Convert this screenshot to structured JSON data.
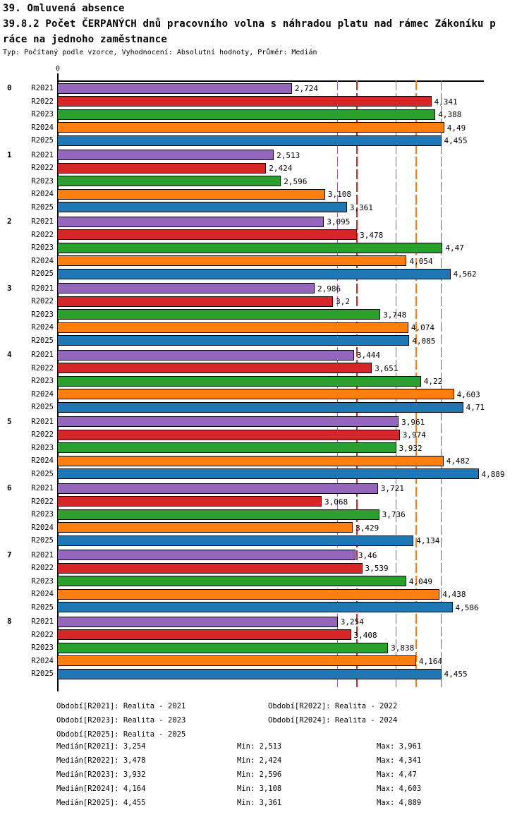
{
  "header": {
    "title_line1": "39. Omluvená absence",
    "title_line2": "39.8.2 Počet ČERPANÝCH dnů pracovního volna s náhradou platu nad rámec Zákoníku p",
    "title_line3": "ráce na jednoho zaměstnance",
    "subtitle": "Typ: Počítaný podle vzorce, Vyhodnocení: Absolutní hodnoty, Průměr: Medián"
  },
  "chart_data": {
    "type": "bar",
    "orientation": "horizontal",
    "title": "39.8.2 Počet ČERPANÝCH dnů pracovního volna s náhradou platu nad rámec Zákoníku práce na jednoho zaměstnance",
    "xlabel": "",
    "ylabel": "",
    "xlim": [
      0,
      4.95
    ],
    "grid": false,
    "axis_origin_tick_label": "0",
    "series": [
      "R2021",
      "R2022",
      "R2023",
      "R2024",
      "R2025"
    ],
    "colors": [
      "#9467bd",
      "#d62728",
      "#2ca02c",
      "#ff7f0e",
      "#1f77b4"
    ],
    "categories": [
      "0",
      "1",
      "2",
      "3",
      "4",
      "5",
      "6",
      "7",
      "8"
    ],
    "groups": [
      {
        "category": "0",
        "values": [
          2.724,
          4.341,
          4.388,
          4.49,
          4.455
        ],
        "value_labels": [
          "2,724",
          "4,341",
          "4,388",
          "4,49",
          "4,455"
        ]
      },
      {
        "category": "1",
        "values": [
          2.513,
          2.424,
          2.596,
          3.108,
          3.361
        ],
        "value_labels": [
          "2,513",
          "2,424",
          "2,596",
          "3,108",
          "3,361"
        ]
      },
      {
        "category": "2",
        "values": [
          3.095,
          3.478,
          4.47,
          4.054,
          4.562
        ],
        "value_labels": [
          "3,095",
          "3,478",
          "4,47",
          "4,054",
          "4,562"
        ]
      },
      {
        "category": "3",
        "values": [
          2.986,
          3.2,
          3.748,
          4.074,
          4.085
        ],
        "value_labels": [
          "2,986",
          "3,2",
          "3,748",
          "4,074",
          "4,085"
        ]
      },
      {
        "category": "4",
        "values": [
          3.444,
          3.651,
          4.22,
          4.603,
          4.71
        ],
        "value_labels": [
          "3,444",
          "3,651",
          "4,22",
          "4,603",
          "4,71"
        ]
      },
      {
        "category": "5",
        "values": [
          3.961,
          3.974,
          3.932,
          4.482,
          4.889
        ],
        "value_labels": [
          "3,961",
          "3,974",
          "3,932",
          "4,482",
          "4,889"
        ]
      },
      {
        "category": "6",
        "values": [
          3.721,
          3.068,
          3.736,
          3.429,
          4.134
        ],
        "value_labels": [
          "3,721",
          "3,068",
          "3,736",
          "3,429",
          "4,134"
        ]
      },
      {
        "category": "7",
        "values": [
          3.46,
          3.539,
          4.049,
          4.438,
          4.586
        ],
        "value_labels": [
          "3,46",
          "3,539",
          "4,049",
          "4,438",
          "4,586"
        ]
      },
      {
        "category": "8",
        "values": [
          3.254,
          3.408,
          3.838,
          4.164,
          4.455
        ],
        "value_labels": [
          "3,254",
          "3,408",
          "3,838",
          "4,164",
          "4,455"
        ]
      }
    ],
    "median_lines": [
      {
        "series": "R2021",
        "value": 3.254,
        "color": "#9467bd"
      },
      {
        "series": "R2022",
        "value": 3.478,
        "color": "#d62728"
      },
      {
        "series": "R2023",
        "value": 3.932,
        "color": "#2ca02c"
      },
      {
        "series": "R2024",
        "value": 4.164,
        "color": "#ff7f0e"
      },
      {
        "series": "R2025",
        "value": 4.455,
        "color": "#1f77b4"
      }
    ]
  },
  "legend": {
    "period_labels": [
      "Období[R2021]: Realita - 2021",
      "Období[R2022]: Realita - 2022",
      "Období[R2023]: Realita - 2023",
      "Období[R2024]: Realita - 2024",
      "Období[R2025]: Realita - 2025"
    ],
    "stats": [
      {
        "median": "Medián[R2021]: 3,254",
        "min": "Min: 2,513",
        "max": "Max: 3,961"
      },
      {
        "median": "Medián[R2022]: 3,478",
        "min": "Min: 2,424",
        "max": "Max: 4,341"
      },
      {
        "median": "Medián[R2023]: 3,932",
        "min": "Min: 2,596",
        "max": "Max: 4,47"
      },
      {
        "median": "Medián[R2024]: 4,164",
        "min": "Min: 3,108",
        "max": "Max: 4,603"
      },
      {
        "median": "Medián[R2025]: 4,455",
        "min": "Min: 3,361",
        "max": "Max: 4,889"
      }
    ]
  }
}
